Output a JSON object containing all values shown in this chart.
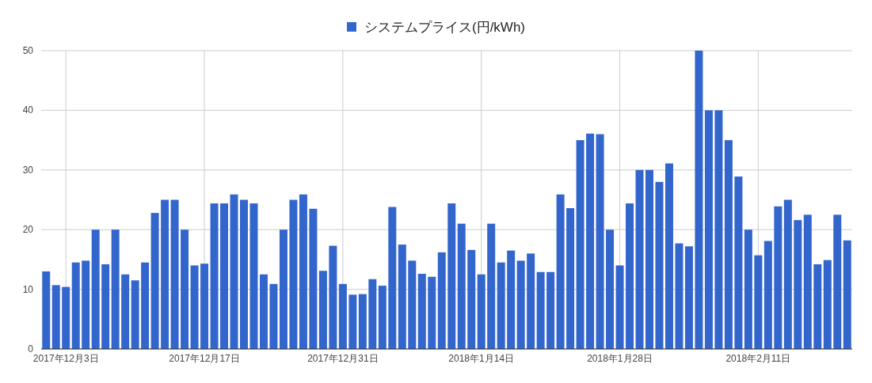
{
  "chart_data": {
    "type": "bar",
    "xlim": [
      "2017-11-30T12:00",
      "2018-02-20T12:00"
    ],
    "x": [
      "2017-12-01",
      "2017-12-02",
      "2017-12-03",
      "2017-12-04",
      "2017-12-05",
      "2017-12-06",
      "2017-12-07",
      "2017-12-08",
      "2017-12-09",
      "2017-12-10",
      "2017-12-11",
      "2017-12-12",
      "2017-12-13",
      "2017-12-14",
      "2017-12-15",
      "2017-12-16",
      "2017-12-17",
      "2017-12-18",
      "2017-12-19",
      "2017-12-20",
      "2017-12-21",
      "2017-12-22",
      "2017-12-23",
      "2017-12-24",
      "2017-12-25",
      "2017-12-26",
      "2017-12-27",
      "2017-12-28",
      "2017-12-29",
      "2017-12-30",
      "2017-12-31",
      "2018-01-01",
      "2018-01-02",
      "2018-01-03",
      "2018-01-04",
      "2018-01-05",
      "2018-01-06",
      "2018-01-07",
      "2018-01-08",
      "2018-01-09",
      "2018-01-10",
      "2018-01-11",
      "2018-01-12",
      "2018-01-13",
      "2018-01-14",
      "2018-01-15",
      "2018-01-16",
      "2018-01-17",
      "2018-01-18",
      "2018-01-19",
      "2018-01-20",
      "2018-01-21",
      "2018-01-22",
      "2018-01-23",
      "2018-01-24",
      "2018-01-25",
      "2018-01-26",
      "2018-01-27",
      "2018-01-28",
      "2018-01-29",
      "2018-01-30",
      "2018-01-31",
      "2018-02-01",
      "2018-02-02",
      "2018-02-03",
      "2018-02-04",
      "2018-02-05",
      "2018-02-06",
      "2018-02-07",
      "2018-02-08",
      "2018-02-09",
      "2018-02-10",
      "2018-02-11",
      "2018-02-12",
      "2018-02-13",
      "2018-02-14",
      "2018-02-15",
      "2018-02-16",
      "2018-02-17",
      "2018-02-18",
      "2018-02-19",
      "2018-02-20"
    ],
    "series": [
      {
        "name": "システムプライス(円/kWh)",
        "color": "#3366cc",
        "values": [
          13.0,
          10.7,
          10.4,
          14.5,
          14.8,
          20.0,
          14.2,
          20.0,
          12.5,
          11.5,
          14.5,
          22.8,
          25.0,
          25.0,
          20.0,
          14.0,
          14.3,
          24.4,
          24.4,
          25.9,
          25.0,
          24.4,
          12.5,
          10.9,
          20.0,
          25.0,
          25.9,
          23.5,
          13.1,
          17.3,
          10.9,
          9.1,
          9.2,
          11.7,
          10.6,
          23.8,
          17.5,
          14.8,
          12.6,
          12.1,
          16.2,
          24.4,
          21.0,
          16.6,
          12.5,
          21.0,
          14.5,
          16.5,
          14.8,
          16.0,
          12.9,
          12.9,
          25.9,
          23.6,
          35.0,
          36.1,
          36.0,
          20.0,
          14.0,
          24.4,
          30.0,
          30.0,
          28.0,
          31.1,
          17.7,
          17.2,
          50.0,
          40.0,
          40.0,
          35.0,
          28.9,
          20.0,
          15.7,
          18.1,
          23.9,
          25.0,
          21.6,
          22.5,
          14.2,
          14.9,
          22.5,
          18.2
        ]
      }
    ],
    "xticks": [
      {
        "value": "2017-12-03",
        "label": "2017年12月3日"
      },
      {
        "value": "2017-12-17",
        "label": "2017年12月17日"
      },
      {
        "value": "2017-12-31",
        "label": "2017年12月31日"
      },
      {
        "value": "2018-01-14",
        "label": "2018年1月14日"
      },
      {
        "value": "2018-01-28",
        "label": "2018年1月28日"
      },
      {
        "value": "2018-02-11",
        "label": "2018年2月11日"
      }
    ],
    "ylim": [
      0,
      50
    ],
    "yticks": [
      0,
      10,
      20,
      30,
      40,
      50
    ],
    "grid": true,
    "legend": "top"
  }
}
